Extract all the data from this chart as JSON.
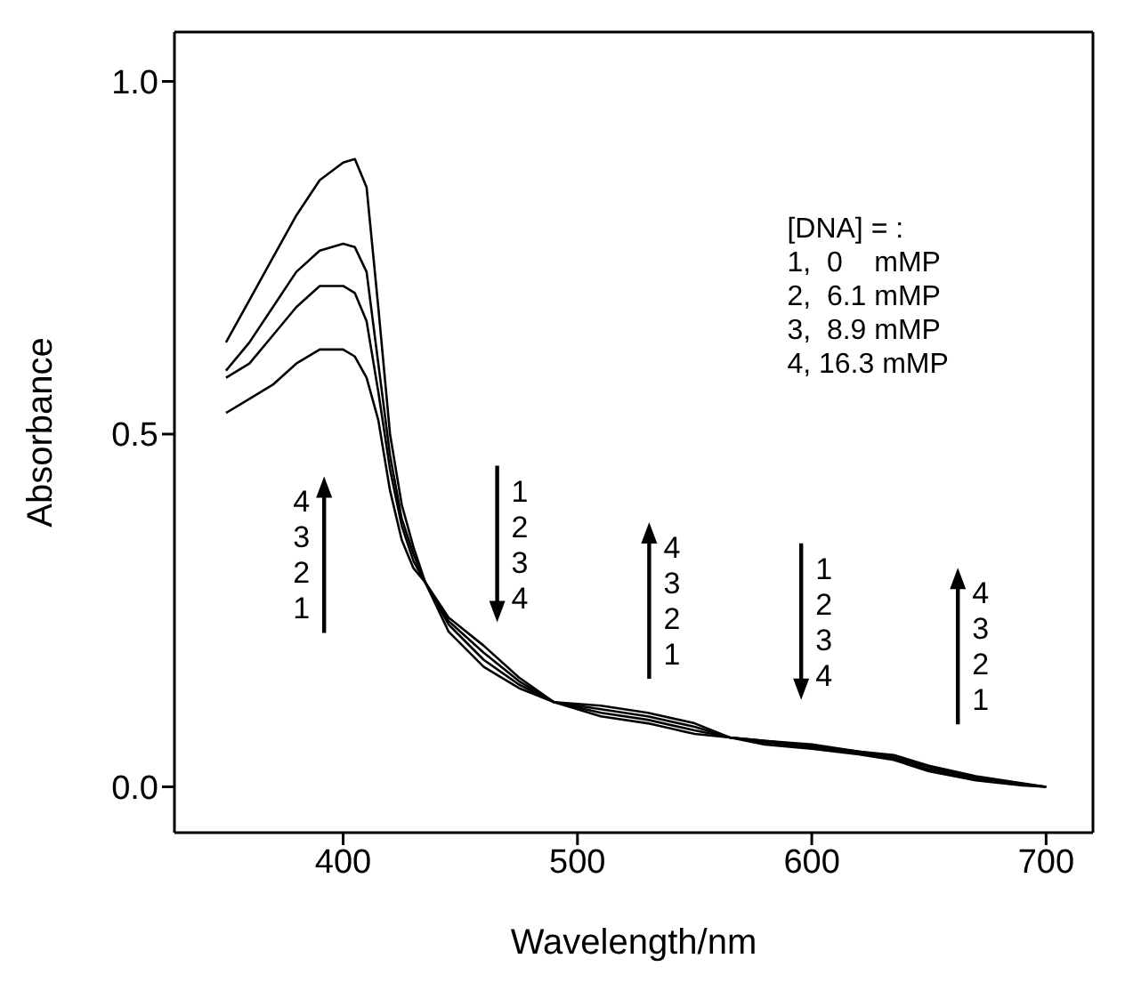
{
  "chart_data": {
    "type": "line",
    "xlabel": "Wavelength/nm",
    "ylabel": "Absorbance",
    "x": [
      350,
      360,
      370,
      380,
      390,
      400,
      405,
      410,
      415,
      420,
      425,
      430,
      435,
      445,
      460,
      475,
      490,
      510,
      530,
      550,
      565,
      580,
      600,
      620,
      635,
      650,
      670,
      690,
      700
    ],
    "series": [
      {
        "color": "#000000",
        "values": [
          0.63,
          0.69,
          0.75,
          0.81,
          0.86,
          0.885,
          0.89,
          0.85,
          0.68,
          0.5,
          0.4,
          0.34,
          0.29,
          0.22,
          0.17,
          0.14,
          0.12,
          0.115,
          0.105,
          0.09,
          0.07,
          0.065,
          0.06,
          0.05,
          0.045,
          0.03,
          0.015,
          0.005,
          0.0
        ]
      },
      {
        "color": "#000000",
        "values": [
          0.59,
          0.63,
          0.68,
          0.73,
          0.76,
          0.77,
          0.765,
          0.73,
          0.6,
          0.47,
          0.38,
          0.33,
          0.29,
          0.23,
          0.18,
          0.145,
          0.12,
          0.11,
          0.1,
          0.085,
          0.07,
          0.065,
          0.058,
          0.05,
          0.042,
          0.028,
          0.013,
          0.004,
          0.0
        ]
      },
      {
        "color": "#000000",
        "values": [
          0.58,
          0.6,
          0.64,
          0.68,
          0.71,
          0.71,
          0.7,
          0.66,
          0.56,
          0.45,
          0.37,
          0.32,
          0.29,
          0.235,
          0.19,
          0.15,
          0.12,
          0.105,
          0.095,
          0.08,
          0.07,
          0.063,
          0.056,
          0.048,
          0.04,
          0.025,
          0.011,
          0.003,
          0.0
        ]
      },
      {
        "color": "#000000",
        "values": [
          0.53,
          0.55,
          0.57,
          0.6,
          0.62,
          0.62,
          0.61,
          0.58,
          0.52,
          0.42,
          0.35,
          0.31,
          0.29,
          0.24,
          0.2,
          0.155,
          0.12,
          0.1,
          0.09,
          0.075,
          0.07,
          0.06,
          0.054,
          0.046,
          0.038,
          0.022,
          0.009,
          0.002,
          0.0
        ]
      }
    ],
    "xlim": [
      328,
      720
    ],
    "xticks": [
      400,
      500,
      600,
      700
    ],
    "ylim": [
      -0.065,
      1.07
    ],
    "yticks": [
      {
        "value": 0,
        "label": "0.0"
      },
      {
        "value": 0.5,
        "label": "0.5"
      },
      {
        "value": 1,
        "label": "1.0"
      }
    ],
    "marker": "none",
    "annotations": [
      "[DNA] = :\n1,  0    mMP\n2,  6.1 mMP\n3,  8.9 mMP\n4, 16.3 mMP",
      "4\n3\n2\n1",
      "1\n2\n3\n4",
      "4\n3\n2\n1",
      "1\n2\n3\n4",
      "4\n3\n2\n1"
    ]
  }
}
